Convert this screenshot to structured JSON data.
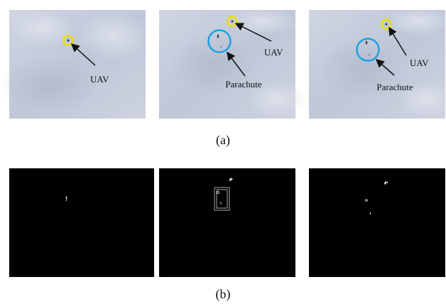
{
  "panels": [
    {
      "labels": [
        "UAV"
      ]
    },
    {
      "labels": [
        "UAV",
        "Parachute"
      ]
    },
    {
      "labels": [
        "UAV",
        "Parachute"
      ]
    }
  ],
  "captions": [
    "(a)",
    "(b)"
  ]
}
